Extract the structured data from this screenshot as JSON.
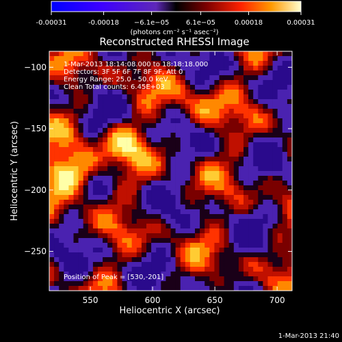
{
  "chart_data": {
    "type": "heatmap",
    "title": "Reconstructed RHESSI Image",
    "xlabel": "Heliocentric X (arcsec)",
    "ylabel": "Heliocentric Y (arcsec)",
    "xlim": [
      517,
      712
    ],
    "ylim": [
      -282,
      -87
    ],
    "x_ticks": [
      550,
      600,
      650,
      700
    ],
    "y_ticks": [
      -100,
      -150,
      -200,
      -250
    ],
    "colorbar": {
      "min": -0.00031,
      "max": 0.00031,
      "ticks": [
        -0.00031,
        -0.00018,
        -6.1e-05,
        6.1e-05,
        0.00018,
        0.00031
      ],
      "tick_labels": [
        "-0.00031",
        "-0.00018",
        "−6.1e−05",
        "6.1e−05",
        "0.00018",
        "0.00031"
      ],
      "units": "(photons cm⁻² s⁻¹ asec⁻²)"
    },
    "annotations": [
      "1-Mar-2013 18:14:08.000 to 18:18:18.000",
      "Detectors: 3F 5F 6F 7F 8F 9F, Att 0",
      "Energy Range: 25.0 - 50.0 keV",
      "Clean    Total counts: 6.45E+03"
    ],
    "peak_label": "Position of Peak = [530,-201]",
    "peak_position": [
      530,
      -201
    ],
    "grid": false
  },
  "footer": {
    "timestamp": "1-Mar-2013 21:40"
  }
}
